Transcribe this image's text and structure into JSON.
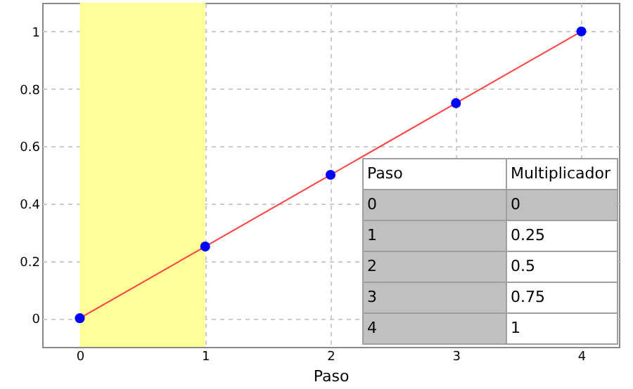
{
  "chart_data": {
    "type": "line",
    "xlabel": "Paso",
    "x": [
      0,
      1,
      2,
      3,
      4
    ],
    "series": [
      {
        "color": "#ff4040",
        "colors": [
          "#0000ff",
          "#0000ff",
          "#0000ff",
          "#0000ff",
          "#0000ff"
        ],
        "values": [
          0,
          0.25,
          0.5,
          0.75,
          1
        ]
      }
    ],
    "xlim": [
      -0.3,
      4.3
    ],
    "ylim": [
      -0.1,
      1.1
    ],
    "xticks": [
      0,
      1,
      2,
      3,
      4
    ],
    "yticks": [
      0,
      0.2,
      0.4,
      0.6,
      0.8,
      1
    ],
    "bands": [
      {
        "axis": "x",
        "from": 0,
        "to": 1,
        "color": "#ffff99"
      }
    ],
    "annotations": [
      "Paso",
      "Multiplicador",
      "0",
      "0",
      "1",
      "0.25",
      "2",
      "0.5",
      "3",
      "0.75",
      "4",
      "1"
    ],
    "grid": true,
    "marker": "circle",
    "line_style": "solid"
  }
}
